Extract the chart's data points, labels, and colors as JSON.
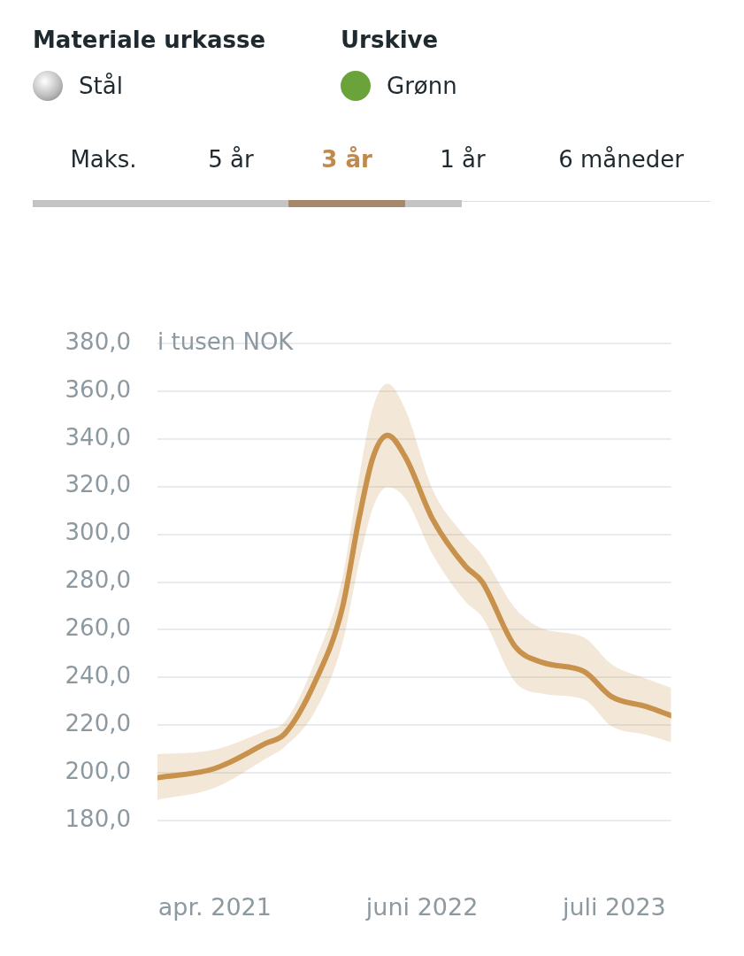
{
  "chart_data": {
    "type": "line",
    "ylabel": "i tusen NOK",
    "annotations": [
      "Materiale urkasse",
      "Stål",
      "Urskive",
      "Grønn",
      "Maks.",
      "5 år",
      "3 år",
      "1 år",
      "6 måneder"
    ],
    "x": [
      "2020-12-04",
      "2021-03-30",
      "2021-07-15",
      "2021-08-23",
      "2021-10-24",
      "2021-12-19",
      "2022-01-22",
      "2022-02-20",
      "2022-03-22",
      "2022-04-28",
      "2022-06-23",
      "2022-08-30",
      "2022-10-02",
      "2022-12-09",
      "2023-02-05",
      "2023-04-30",
      "2023-06-25",
      "2023-09-06",
      "2023-10-26"
    ],
    "series": [
      {
        "color": "#c8914c",
        "values": [
          198.0,
          201.7,
          212.4,
          216.5,
          238.2,
          269.1,
          306.2,
          332.2,
          341.5,
          332.2,
          306.2,
          286.4,
          280.2,
          253.0,
          246.2,
          242.5,
          232.0,
          227.7,
          224.0
        ],
        "lower": [
          188.7,
          193.6,
          206.0,
          211.0,
          225.8,
          254.2,
          287.7,
          311.2,
          319.8,
          314.9,
          291.4,
          271.6,
          265.4,
          238.2,
          233.2,
          230.7,
          219.6,
          215.9,
          212.8
        ],
        "upper": [
          207.8,
          209.7,
          217.8,
          221.5,
          246.8,
          281.5,
          323.5,
          353.2,
          363.1,
          352.0,
          318.6,
          298.8,
          291.4,
          269.1,
          260.4,
          256.7,
          245.6,
          239.4,
          235.7
        ]
      }
    ],
    "xlim": [
      "2020-12-04",
      "2023-10-26"
    ],
    "xticks": [
      {
        "value": "2021-04-01",
        "label": "apr. 2021"
      },
      {
        "value": "2022-06-01",
        "label": "juni 2022"
      },
      {
        "value": "2023-07-01",
        "label": "juli 2023"
      }
    ],
    "ylim": [
      180,
      380
    ],
    "yticks": [
      {
        "value": 180,
        "label": "180,0"
      },
      {
        "value": 200,
        "label": "200,0"
      },
      {
        "value": 220,
        "label": "220,0"
      },
      {
        "value": 240,
        "label": "240,0"
      },
      {
        "value": 260,
        "label": "260,0"
      },
      {
        "value": 280,
        "label": "280,0"
      },
      {
        "value": 300,
        "label": "300,0"
      },
      {
        "value": 320,
        "label": "320,0"
      },
      {
        "value": 340,
        "label": "340,0"
      },
      {
        "value": 360,
        "label": "360,0"
      },
      {
        "value": 380,
        "label": "380,0"
      }
    ],
    "grid": "y",
    "legend": false,
    "marker": "none",
    "line_style": "solid"
  }
}
